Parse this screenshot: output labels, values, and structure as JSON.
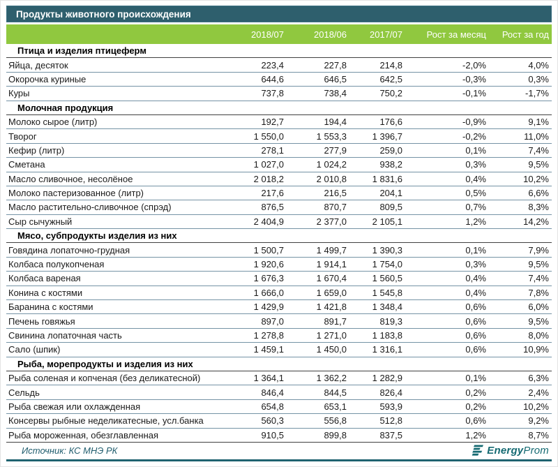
{
  "title": "Продукты животного происхождения",
  "columns": [
    "2018/07",
    "2018/06",
    "2017/07",
    "Рост за месяц",
    "Рост за год"
  ],
  "chart_data": {
    "type": "table",
    "title": "Продукты животного происхождения",
    "columns": [
      "2018/07",
      "2018/06",
      "2017/07",
      "Рост за месяц",
      "Рост за год"
    ],
    "sections": [
      {
        "name": "Птица и изделия птицеферм",
        "rows": [
          {
            "label": "Яйца, десяток",
            "values": [
              "223,4",
              "227,8",
              "214,8",
              "-2,0%",
              "4,0%"
            ]
          },
          {
            "label": "Окорочка куриные",
            "values": [
              "644,6",
              "646,5",
              "642,5",
              "-0,3%",
              "0,3%"
            ]
          },
          {
            "label": "Куры",
            "values": [
              "737,8",
              "738,4",
              "750,2",
              "-0,1%",
              "-1,7%"
            ]
          }
        ]
      },
      {
        "name": "Молочная продукция",
        "rows": [
          {
            "label": "Молоко сырое (литр)",
            "values": [
              "192,7",
              "194,4",
              "176,6",
              "-0,9%",
              "9,1%"
            ]
          },
          {
            "label": "Творог",
            "values": [
              "1 550,0",
              "1 553,3",
              "1 396,7",
              "-0,2%",
              "11,0%"
            ]
          },
          {
            "label": "Кефир (литр)",
            "values": [
              "278,1",
              "277,9",
              "259,0",
              "0,1%",
              "7,4%"
            ]
          },
          {
            "label": "Сметана",
            "values": [
              "1 027,0",
              "1 024,2",
              "938,2",
              "0,3%",
              "9,5%"
            ]
          },
          {
            "label": "Масло сливочное, несолёное",
            "values": [
              "2 018,2",
              "2 010,8",
              "1 831,6",
              "0,4%",
              "10,2%"
            ]
          },
          {
            "label": "Молоко пастеризованное (литр)",
            "values": [
              "217,6",
              "216,5",
              "204,1",
              "0,5%",
              "6,6%"
            ]
          },
          {
            "label": "Масло растительно-сливочное (спрэд)",
            "values": [
              "876,5",
              "870,7",
              "809,5",
              "0,7%",
              "8,3%"
            ]
          },
          {
            "label": "Сыр сычужный",
            "values": [
              "2 404,9",
              "2 377,0",
              "2 105,1",
              "1,2%",
              "14,2%"
            ]
          }
        ]
      },
      {
        "name": "Мясо, субпродукты изделия из них",
        "rows": [
          {
            "label": "Говядина лопаточно-грудная",
            "values": [
              "1 500,7",
              "1 499,7",
              "1 390,3",
              "0,1%",
              "7,9%"
            ]
          },
          {
            "label": "Колбаса полукопченая",
            "values": [
              "1 920,6",
              "1 914,1",
              "1 754,0",
              "0,3%",
              "9,5%"
            ]
          },
          {
            "label": "Колбаса вареная",
            "values": [
              "1 676,3",
              "1 670,4",
              "1 560,5",
              "0,4%",
              "7,4%"
            ]
          },
          {
            "label": "Конина с костями",
            "values": [
              "1 666,0",
              "1 659,0",
              "1 545,8",
              "0,4%",
              "7,8%"
            ]
          },
          {
            "label": "Баранина с костями",
            "values": [
              "1 429,9",
              "1 421,8",
              "1 348,4",
              "0,6%",
              "6,0%"
            ]
          },
          {
            "label": "Печень говяжья",
            "values": [
              "897,0",
              "891,7",
              "819,3",
              "0,6%",
              "9,5%"
            ]
          },
          {
            "label": "Свинина лопаточная часть",
            "values": [
              "1 278,8",
              "1 271,0",
              "1 183,8",
              "0,6%",
              "8,0%"
            ]
          },
          {
            "label": "Сало (шпик)",
            "values": [
              "1 459,1",
              "1 450,0",
              "1 316,1",
              "0,6%",
              "10,9%"
            ]
          }
        ]
      },
      {
        "name": "Рыба, морепродукты и изделия из них",
        "rows": [
          {
            "label": "Рыба соленая и копченая (без деликатесной)",
            "values": [
              "1 364,1",
              "1 362,2",
              "1 282,9",
              "0,1%",
              "6,3%"
            ]
          },
          {
            "label": "Сельдь",
            "values": [
              "846,4",
              "844,5",
              "826,4",
              "0,2%",
              "2,4%"
            ]
          },
          {
            "label": "Рыба свежая или охлажденная",
            "values": [
              "654,8",
              "653,1",
              "593,9",
              "0,2%",
              "10,2%"
            ]
          },
          {
            "label": "Консервы рыбные неделикатесные, усл.банка",
            "values": [
              "560,3",
              "556,8",
              "512,8",
              "0,6%",
              "9,2%"
            ]
          },
          {
            "label": "Рыба мороженная, обезглавленная",
            "values": [
              "910,5",
              "899,8",
              "837,5",
              "1,2%",
              "8,7%"
            ]
          }
        ]
      }
    ]
  },
  "footer": {
    "source_label": "Источник: КС МНЭ РК",
    "logo_energy": "Energy",
    "logo_prom": "Prom"
  },
  "colors": {
    "title_bg": "#2E5F6D",
    "header_bg": "#90C83F",
    "row_line": "#7593A5",
    "section_line": "#404040",
    "accent_teal": "#1F6370",
    "logo_teal": "#156A72"
  }
}
